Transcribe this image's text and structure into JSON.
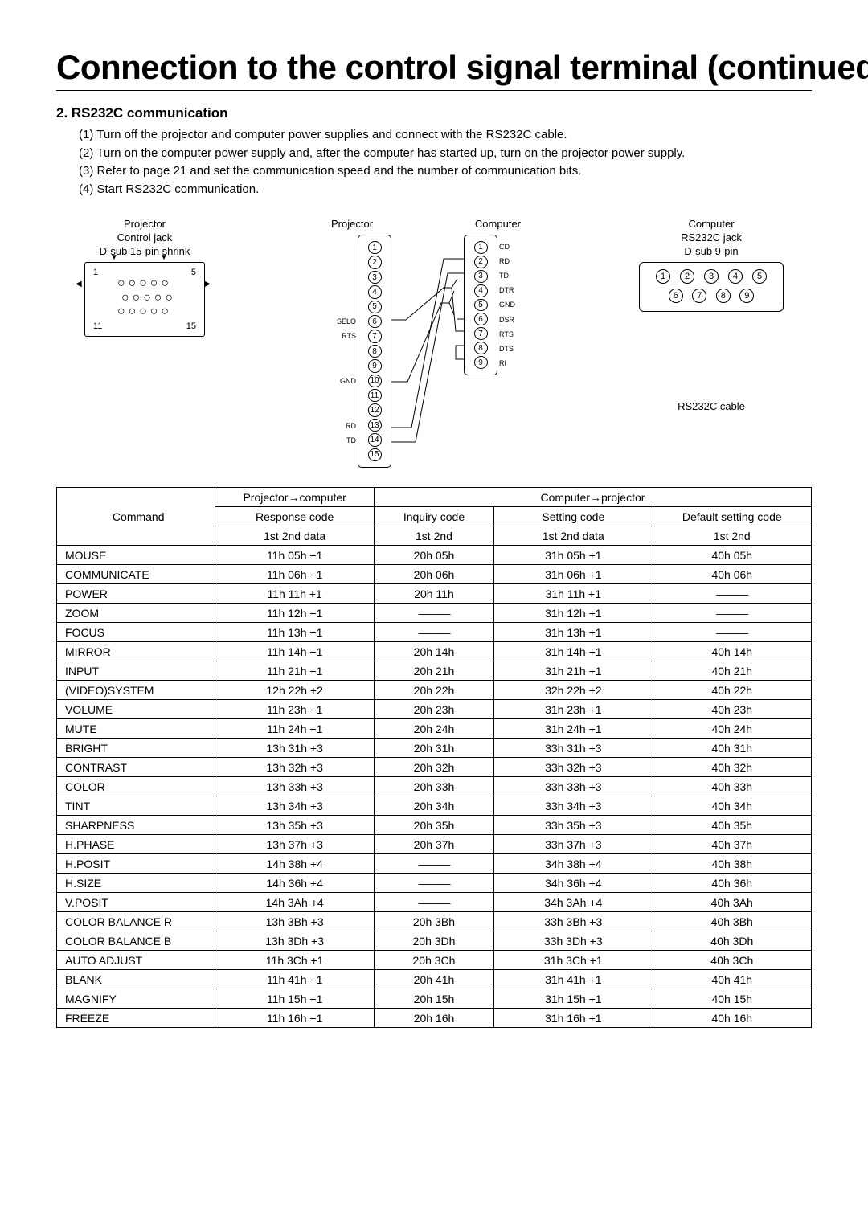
{
  "title": "Connection to the control signal terminal (continued)",
  "section": {
    "heading": "2.  RS232C communication",
    "steps": [
      "(1) Turn off the projector and computer power supplies and connect with the RS232C cable.",
      "(2) Turn on the computer power supply and, after the computer has started up, turn on the projector power supply.",
      "(3) Refer to page 21 and set the communication speed and the number of communication bits.",
      "(4) Start RS232C communication."
    ]
  },
  "diagram_labels": {
    "proj_jack_1": "Projector",
    "proj_jack_2": "Control jack",
    "proj_jack_3": "D-sub 15-pin shrink",
    "col_projector": "Projector",
    "col_computer": "Computer",
    "comp_jack_1": "Computer",
    "comp_jack_2": "RS232C jack",
    "comp_jack_3": "D-sub 9-pin",
    "rs232c_cable": "RS232C cable",
    "pin15_leftnums": [
      "1",
      "11"
    ],
    "pin15_rightnums": [
      "5",
      "15"
    ],
    "proj_left_lbls": [
      "",
      "",
      "",
      "",
      "",
      "SELO",
      "RTS",
      "",
      "",
      "GND",
      "",
      "",
      "RD",
      "TD",
      ""
    ],
    "comp_right_lbls": [
      "CD",
      "RD",
      "TD",
      "DTR",
      "GND",
      "DSR",
      "RTS",
      "DTS",
      "RI"
    ]
  },
  "table": {
    "head_projcomp": "Projector→computer",
    "head_compproj": "Computer→projector",
    "head_response": "Response code",
    "head_inquiry": "Inquiry code",
    "head_setting": "Setting code",
    "head_default": "Default setting code",
    "head_command": "Command",
    "sub_1st2nddata": "1st  2nd   data",
    "sub_1st2nd": "1st   2nd",
    "dash": "———",
    "rows": [
      {
        "cmd": "MOUSE",
        "resp": "11h   05h   +1",
        "inq": "20h   05h",
        "set": "31h   05h   +1",
        "def": "40h   05h"
      },
      {
        "cmd": "COMMUNICATE",
        "resp": "11h   06h   +1",
        "inq": "20h   06h",
        "set": "31h   06h   +1",
        "def": "40h   06h"
      },
      {
        "cmd": "POWER",
        "resp": "11h   11h   +1",
        "inq": "20h   11h",
        "set": "31h   11h   +1",
        "def": "DASH"
      },
      {
        "cmd": "ZOOM",
        "resp": "11h   12h   +1",
        "inq": "DASH",
        "set": "31h   12h   +1",
        "def": "DASH"
      },
      {
        "cmd": "FOCUS",
        "resp": "11h   13h   +1",
        "inq": "DASH",
        "set": "31h   13h   +1",
        "def": "DASH"
      },
      {
        "cmd": "MIRROR",
        "resp": "11h   14h   +1",
        "inq": "20h   14h",
        "set": "31h   14h   +1",
        "def": "40h   14h"
      },
      {
        "cmd": "INPUT",
        "resp": "11h   21h   +1",
        "inq": "20h   21h",
        "set": "31h   21h   +1",
        "def": "40h   21h"
      },
      {
        "cmd": "(VIDEO)SYSTEM",
        "resp": "12h   22h   +2",
        "inq": "20h   22h",
        "set": "32h   22h   +2",
        "def": "40h   22h"
      },
      {
        "cmd": "VOLUME",
        "resp": "11h   23h   +1",
        "inq": "20h   23h",
        "set": "31h   23h   +1",
        "def": "40h   23h"
      },
      {
        "cmd": "MUTE",
        "resp": "11h   24h   +1",
        "inq": "20h   24h",
        "set": "31h   24h   +1",
        "def": "40h   24h"
      },
      {
        "cmd": "BRIGHT",
        "resp": "13h   31h   +3",
        "inq": "20h   31h",
        "set": "33h   31h   +3",
        "def": "40h   31h"
      },
      {
        "cmd": "CONTRAST",
        "resp": "13h   32h   +3",
        "inq": "20h   32h",
        "set": "33h   32h   +3",
        "def": "40h   32h"
      },
      {
        "cmd": "COLOR",
        "resp": "13h   33h   +3",
        "inq": "20h   33h",
        "set": "33h   33h   +3",
        "def": "40h   33h"
      },
      {
        "cmd": "TINT",
        "resp": "13h   34h   +3",
        "inq": "20h   34h",
        "set": "33h   34h   +3",
        "def": "40h   34h"
      },
      {
        "cmd": "SHARPNESS",
        "resp": "13h   35h   +3",
        "inq": "20h   35h",
        "set": "33h   35h   +3",
        "def": "40h   35h"
      },
      {
        "cmd": "H.PHASE",
        "resp": "13h   37h   +3",
        "inq": "20h   37h",
        "set": "33h   37h   +3",
        "def": "40h   37h"
      },
      {
        "cmd": "H.POSIT",
        "resp": "14h   38h   +4",
        "inq": "DASH",
        "set": "34h   38h   +4",
        "def": "40h   38h"
      },
      {
        "cmd": "H.SIZE",
        "resp": "14h   36h   +4",
        "inq": "DASH",
        "set": "34h   36h   +4",
        "def": "40h   36h"
      },
      {
        "cmd": "V.POSIT",
        "resp": "14h   3Ah   +4",
        "inq": "DASH",
        "set": "34h   3Ah   +4",
        "def": "40h   3Ah"
      },
      {
        "cmd": "COLOR BALANCE R",
        "resp": "13h   3Bh   +3",
        "inq": "20h   3Bh",
        "set": "33h   3Bh   +3",
        "def": "40h   3Bh"
      },
      {
        "cmd": "COLOR BALANCE B",
        "resp": "13h   3Dh   +3",
        "inq": "20h   3Dh",
        "set": "33h   3Dh   +3",
        "def": "40h   3Dh"
      },
      {
        "cmd": "AUTO ADJUST",
        "resp": "11h   3Ch   +1",
        "inq": "20h   3Ch",
        "set": "31h   3Ch   +1",
        "def": "40h   3Ch"
      },
      {
        "cmd": "BLANK",
        "resp": "11h   41h   +1",
        "inq": "20h   41h",
        "set": "31h   41h   +1",
        "def": "40h   41h"
      },
      {
        "cmd": "MAGNIFY",
        "resp": "11h   15h   +1",
        "inq": "20h   15h",
        "set": "31h   15h   +1",
        "def": "40h   15h"
      },
      {
        "cmd": "FREEZE",
        "resp": "11h   16h   +1",
        "inq": "20h   16h",
        "set": "31h   16h   +1",
        "def": "40h   16h"
      }
    ]
  }
}
